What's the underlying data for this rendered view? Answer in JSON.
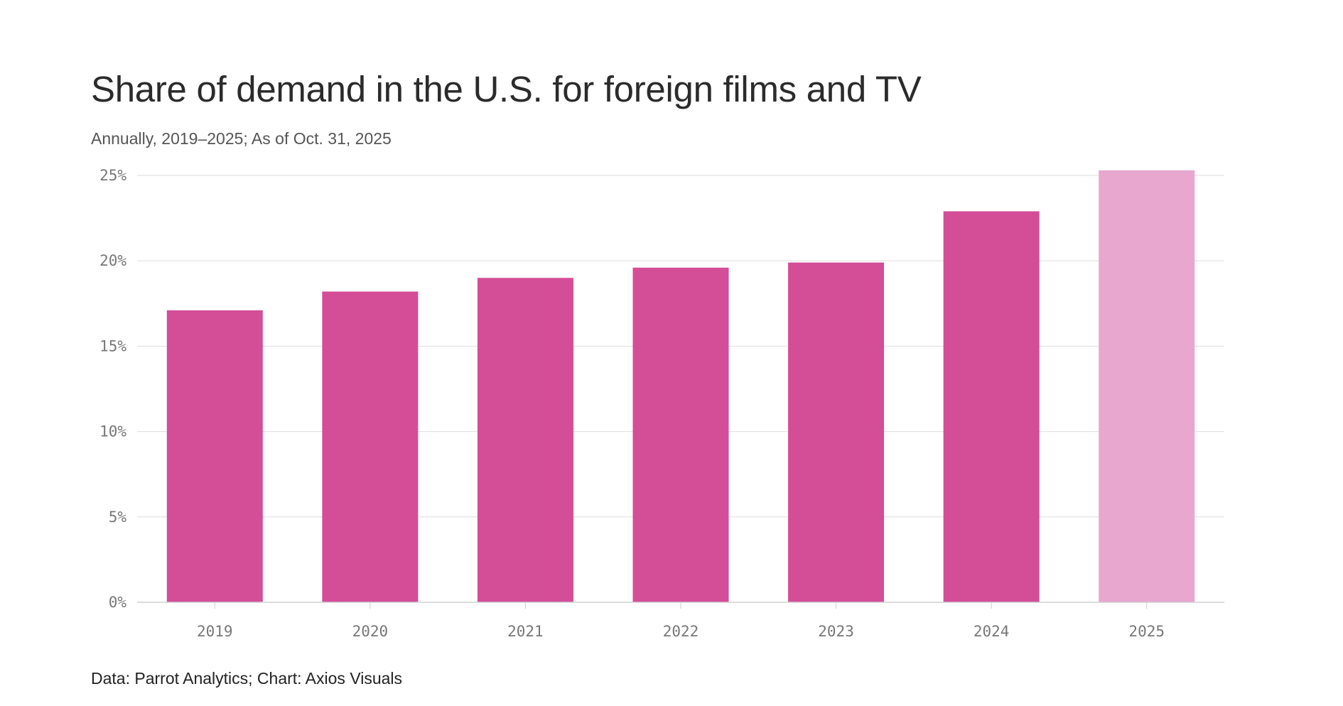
{
  "chart_data": {
    "type": "bar",
    "title": "Share of demand in the U.S. for foreign films and TV",
    "subtitle": "Annually, 2019–2025; As of Oct. 31, 2025",
    "source": "Data: Parrot Analytics; Chart: Axios Visuals",
    "categories": [
      "2019",
      "2020",
      "2021",
      "2022",
      "2023",
      "2024",
      "2025"
    ],
    "values": [
      17.1,
      18.2,
      19.0,
      19.6,
      19.9,
      22.9,
      25.3
    ],
    "highlight_last": true,
    "ylim": [
      0,
      25
    ],
    "yticks": [
      0,
      5,
      10,
      15,
      20,
      25
    ],
    "ytick_labels": [
      "0%",
      "5%",
      "10%",
      "15%",
      "20%",
      "25%"
    ],
    "xlabel": "",
    "ylabel": "",
    "grid": true,
    "colors": {
      "bar": "#d44d97",
      "bar_partial": "#e8a7cf"
    }
  }
}
